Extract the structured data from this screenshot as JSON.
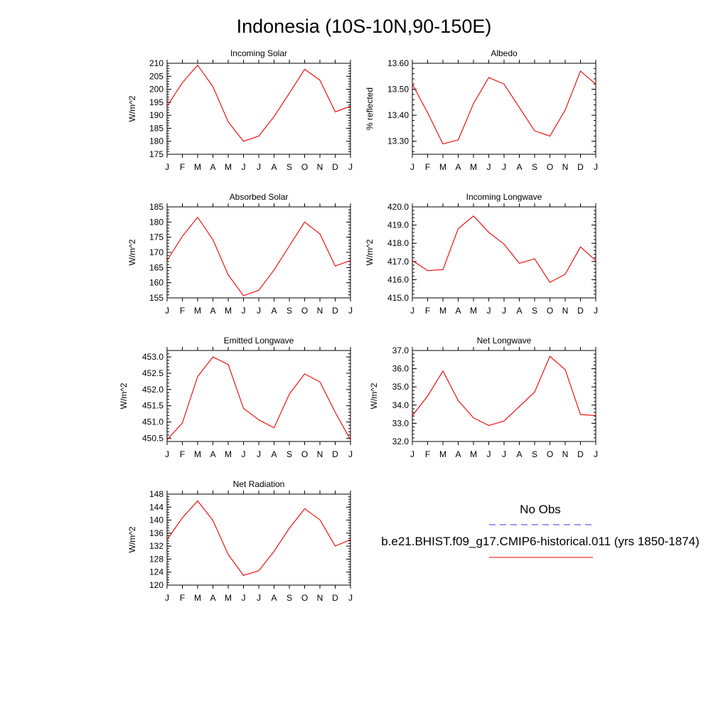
{
  "title": "Indonesia (10S-10N,90-150E)",
  "months": [
    "J",
    "F",
    "M",
    "A",
    "M",
    "J",
    "J",
    "A",
    "S",
    "O",
    "N",
    "D",
    "J"
  ],
  "colors": {
    "model": "#ee0000",
    "obs": "#3333ee",
    "frame": "#000000"
  },
  "legend": {
    "obs_label": "No Obs",
    "model_label": "b.e21.BHIST.f09_g17.CMIP6-historical.011 (yrs 1850-1874)"
  },
  "chart_data": [
    {
      "type": "line",
      "title": "Incoming Solar",
      "ylabel": "W/m^2",
      "ylim": [
        175,
        210
      ],
      "yticks": [
        "175",
        "180",
        "185",
        "190",
        "195",
        "200",
        "205",
        "210"
      ],
      "series": [
        {
          "name": "b.e21.BHIST.f09_g17.CMIP6-historical.011 (yrs 1850-1874)",
          "values": [
            193.5,
            202.5,
            209.3,
            201.0,
            187.5,
            180.0,
            182.0,
            189.5,
            198.5,
            207.7,
            203.5,
            191.3,
            193.5
          ]
        }
      ]
    },
    {
      "type": "line",
      "title": "Albedo",
      "ylabel": "% reflected",
      "ylim": [
        13.25,
        13.6
      ],
      "yticks": [
        "13.30",
        "13.40",
        "13.50",
        "13.60"
      ],
      "series": [
        {
          "name": "b.e21.BHIST.f09_g17.CMIP6-historical.011 (yrs 1850-1874)",
          "values": [
            13.52,
            13.41,
            13.29,
            13.305,
            13.445,
            13.545,
            13.52,
            13.43,
            13.34,
            13.32,
            13.42,
            13.57,
            13.52
          ]
        }
      ]
    },
    {
      "type": "line",
      "title": "Absorbed Solar",
      "ylabel": "W/m^2",
      "ylim": [
        155,
        185
      ],
      "yticks": [
        "155",
        "160",
        "165",
        "170",
        "175",
        "180",
        "185"
      ],
      "series": [
        {
          "name": "b.e21.BHIST.f09_g17.CMIP6-historical.011 (yrs 1850-1874)",
          "values": [
            167.3,
            175.3,
            181.6,
            174.2,
            162.6,
            155.7,
            157.5,
            164.2,
            172.1,
            180.0,
            176.1,
            165.5,
            167.3
          ]
        }
      ]
    },
    {
      "type": "line",
      "title": "Incoming Longwave",
      "ylabel": "W/m^2",
      "ylim": [
        415.0,
        420.0
      ],
      "yticks": [
        "415.0",
        "416.0",
        "417.0",
        "418.0",
        "419.0",
        "420.0"
      ],
      "series": [
        {
          "name": "b.e21.BHIST.f09_g17.CMIP6-historical.011 (yrs 1850-1874)",
          "values": [
            417.05,
            416.5,
            416.55,
            418.8,
            419.5,
            418.6,
            417.95,
            416.9,
            417.15,
            415.85,
            416.3,
            417.8,
            417.05
          ]
        }
      ]
    },
    {
      "type": "line",
      "title": "Emitted Longwave",
      "ylabel": "W/m^2",
      "ylim": [
        450.4,
        453.2
      ],
      "yticks": [
        "450.5",
        "451.0",
        "451.5",
        "452.0",
        "452.5",
        "453.0"
      ],
      "series": [
        {
          "name": "b.e21.BHIST.f09_g17.CMIP6-historical.011 (yrs 1850-1874)",
          "values": [
            450.45,
            450.97,
            452.4,
            453.0,
            452.77,
            451.42,
            451.07,
            450.82,
            451.86,
            452.48,
            452.23,
            451.3,
            450.45
          ]
        }
      ]
    },
    {
      "type": "line",
      "title": "Net Longwave",
      "ylabel": "W/m^2",
      "ylim": [
        32.0,
        37.0
      ],
      "yticks": [
        "32.0",
        "33.0",
        "34.0",
        "35.0",
        "36.0",
        "37.0"
      ],
      "series": [
        {
          "name": "b.e21.BHIST.f09_g17.CMIP6-historical.011 (yrs 1850-1874)",
          "values": [
            33.42,
            34.5,
            35.87,
            34.25,
            33.3,
            32.88,
            33.13,
            33.92,
            34.72,
            36.68,
            35.95,
            33.48,
            33.42
          ]
        }
      ]
    },
    {
      "type": "line",
      "title": "Net Radiation",
      "ylabel": "W/m^2",
      "ylim": [
        120,
        148
      ],
      "yticks": [
        "120",
        "124",
        "128",
        "132",
        "136",
        "140",
        "144",
        "148"
      ],
      "series": [
        {
          "name": "b.e21.BHIST.f09_g17.CMIP6-historical.011 (yrs 1850-1874)",
          "values": [
            134.0,
            140.7,
            145.9,
            139.9,
            129.4,
            123.0,
            124.4,
            130.4,
            137.5,
            143.5,
            140.1,
            132.0,
            134.0
          ]
        }
      ]
    }
  ]
}
